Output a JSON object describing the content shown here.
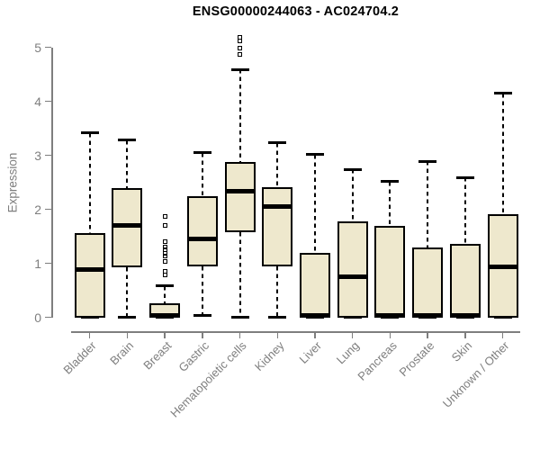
{
  "chart_data": {
    "type": "boxplot",
    "title": "ENSG00000244063 - AC024704.2",
    "ylabel": "Expression",
    "ylim": [
      0,
      5
    ],
    "yticks": [
      0,
      1,
      2,
      3,
      4,
      5
    ],
    "grid": false,
    "legend": "none",
    "categories": [
      "Bladder",
      "Brain",
      "Breast",
      "Gastric",
      "Hematopoietic cells",
      "Kidney",
      "Liver",
      "Lung",
      "Pancreas",
      "Prostate",
      "Skin",
      "Unknown / Other"
    ],
    "boxes": [
      {
        "category": "Bladder",
        "whisker_low": 0,
        "q1": 0,
        "median": 0.88,
        "q3": 1.57,
        "whisker_high": 3.42,
        "outliers": []
      },
      {
        "category": "Brain",
        "whisker_low": 0,
        "q1": 0.93,
        "median": 1.71,
        "q3": 2.39,
        "whisker_high": 3.28,
        "outliers": []
      },
      {
        "category": "Breast",
        "whisker_low": 0,
        "q1": 0,
        "median": 0.02,
        "q3": 0.26,
        "whisker_high": 0.58,
        "outliers": [
          0.78,
          0.85,
          1.03,
          1.13,
          1.19,
          1.25,
          1.3,
          1.41,
          1.7,
          1.87
        ]
      },
      {
        "category": "Gastric",
        "whisker_low": 0.03,
        "q1": 0.94,
        "median": 1.46,
        "q3": 2.24,
        "whisker_high": 3.05,
        "outliers": []
      },
      {
        "category": "Hematopoietic cells",
        "whisker_low": 0,
        "q1": 1.58,
        "median": 2.33,
        "q3": 2.88,
        "whisker_high": 4.59,
        "outliers": [
          4.87,
          4.99,
          5.12,
          5.18
        ]
      },
      {
        "category": "Kidney",
        "whisker_low": 0,
        "q1": 0.95,
        "median": 2.05,
        "q3": 2.41,
        "whisker_high": 3.23,
        "outliers": []
      },
      {
        "category": "Liver",
        "whisker_low": 0,
        "q1": 0,
        "median": 0.02,
        "q3": 1.2,
        "whisker_high": 3.02,
        "outliers": []
      },
      {
        "category": "Lung",
        "whisker_low": 0,
        "q1": 0,
        "median": 0.75,
        "q3": 1.78,
        "whisker_high": 2.74,
        "outliers": []
      },
      {
        "category": "Pancreas",
        "whisker_low": 0,
        "q1": 0,
        "median": 0.02,
        "q3": 1.7,
        "whisker_high": 2.52,
        "outliers": []
      },
      {
        "category": "Prostate",
        "whisker_low": 0,
        "q1": 0,
        "median": 0.02,
        "q3": 1.29,
        "whisker_high": 2.89,
        "outliers": []
      },
      {
        "category": "Skin",
        "whisker_low": 0,
        "q1": 0,
        "median": 0.02,
        "q3": 1.37,
        "whisker_high": 2.59,
        "outliers": []
      },
      {
        "category": "Unknown / Other",
        "whisker_low": 0,
        "q1": 0,
        "median": 0.93,
        "q3": 1.91,
        "whisker_high": 4.15,
        "outliers": []
      }
    ],
    "colors": {
      "box_fill": "#EEE8CD",
      "box_border": "#000000",
      "whisker": "#000000",
      "axis": "#7e7e7e",
      "tick_label": "#7e7e7e",
      "title": "#000000",
      "background": "#ffffff"
    }
  }
}
